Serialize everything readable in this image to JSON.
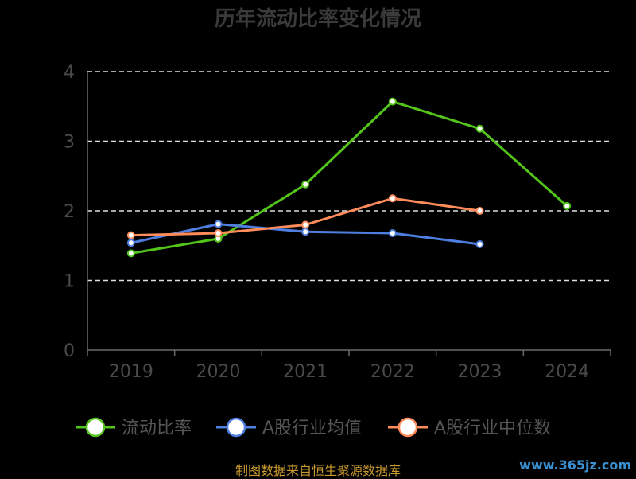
{
  "chart_data": {
    "type": "line",
    "title": "历年流动比率变化情况",
    "categories": [
      "2019",
      "2020",
      "2021",
      "2022",
      "2023",
      "2024"
    ],
    "ylim": [
      0,
      4
    ],
    "yticks": [
      "0",
      "1",
      "2",
      "3",
      "4"
    ],
    "grid": true,
    "legend_position": "bottom",
    "series": [
      {
        "name": "流动比率",
        "color": "#52c41a",
        "values": [
          1.39,
          1.6,
          2.38,
          3.57,
          3.18,
          2.07
        ]
      },
      {
        "name": "A股行业均值",
        "color": "#4e7fe0",
        "values": [
          1.54,
          1.81,
          1.7,
          1.68,
          1.52,
          null
        ]
      },
      {
        "name": "A股行业中位数",
        "color": "#ff8c5a",
        "values": [
          1.65,
          1.68,
          1.8,
          2.18,
          2.0,
          null
        ]
      }
    ]
  },
  "footer": {
    "source": "制图数据来自恒生聚源数据库",
    "watermark": "www.365jz.com"
  }
}
